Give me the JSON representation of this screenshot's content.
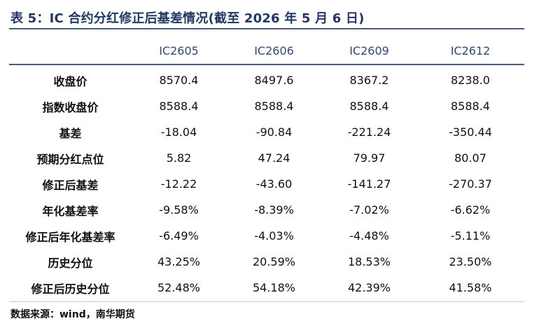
{
  "title": "表 5：IC 合约分红修正后基差情况(截至 2026 年 5 月 6 日)",
  "table": {
    "corner": "",
    "columns": [
      "IC2605",
      "IC2606",
      "IC2609",
      "IC2612"
    ],
    "rows": [
      {
        "label": "收盘价",
        "values": [
          "8570.4",
          "8497.6",
          "8367.2",
          "8238.0"
        ]
      },
      {
        "label": "指数收盘价",
        "values": [
          "8588.4",
          "8588.4",
          "8588.4",
          "8588.4"
        ]
      },
      {
        "label": "基差",
        "values": [
          "-18.04",
          "-90.84",
          "-221.24",
          "-350.44"
        ]
      },
      {
        "label": "预期分红点位",
        "values": [
          "5.82",
          "47.24",
          "79.97",
          "80.07"
        ]
      },
      {
        "label": "修正后基差",
        "values": [
          "-12.22",
          "-43.60",
          "-141.27",
          "-270.37"
        ]
      },
      {
        "label": "年化基差率",
        "values": [
          "-9.58%",
          "-8.39%",
          "-7.02%",
          "-6.62%"
        ]
      },
      {
        "label": "修正后年化基差率",
        "values": [
          "-6.49%",
          "-4.03%",
          "-4.48%",
          "-5.11%"
        ]
      },
      {
        "label": "历史分位",
        "values": [
          "43.25%",
          "20.59%",
          "18.53%",
          "23.50%"
        ]
      },
      {
        "label": "修正后历史分位",
        "values": [
          "52.48%",
          "54.18%",
          "42.39%",
          "41.58%"
        ]
      }
    ]
  },
  "source": "数据来源：wind，南华期货",
  "colors": {
    "title": "#1f3864",
    "header_text": "#2e4a7a",
    "rule": "#4a5a7a"
  }
}
